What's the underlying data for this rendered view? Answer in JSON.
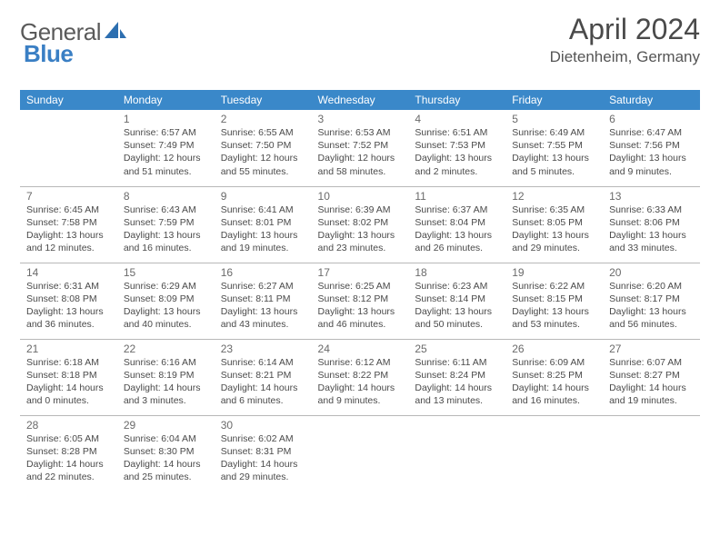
{
  "logo": {
    "text1": "General",
    "text2": "Blue"
  },
  "title": "April 2024",
  "location": "Dietenheim, Germany",
  "colors": {
    "header_bg": "#3a88c9",
    "header_text": "#ffffff",
    "logo_gray": "#5a5a5a",
    "logo_blue": "#3a7fc4",
    "text": "#4a4a4a",
    "border": "#b8b8b8"
  },
  "weekdays": [
    "Sunday",
    "Monday",
    "Tuesday",
    "Wednesday",
    "Thursday",
    "Friday",
    "Saturday"
  ],
  "weeks": [
    [
      {
        "num": "",
        "sunrise": "",
        "sunset": "",
        "daylight": ""
      },
      {
        "num": "1",
        "sunrise": "Sunrise: 6:57 AM",
        "sunset": "Sunset: 7:49 PM",
        "daylight": "Daylight: 12 hours and 51 minutes."
      },
      {
        "num": "2",
        "sunrise": "Sunrise: 6:55 AM",
        "sunset": "Sunset: 7:50 PM",
        "daylight": "Daylight: 12 hours and 55 minutes."
      },
      {
        "num": "3",
        "sunrise": "Sunrise: 6:53 AM",
        "sunset": "Sunset: 7:52 PM",
        "daylight": "Daylight: 12 hours and 58 minutes."
      },
      {
        "num": "4",
        "sunrise": "Sunrise: 6:51 AM",
        "sunset": "Sunset: 7:53 PM",
        "daylight": "Daylight: 13 hours and 2 minutes."
      },
      {
        "num": "5",
        "sunrise": "Sunrise: 6:49 AM",
        "sunset": "Sunset: 7:55 PM",
        "daylight": "Daylight: 13 hours and 5 minutes."
      },
      {
        "num": "6",
        "sunrise": "Sunrise: 6:47 AM",
        "sunset": "Sunset: 7:56 PM",
        "daylight": "Daylight: 13 hours and 9 minutes."
      }
    ],
    [
      {
        "num": "7",
        "sunrise": "Sunrise: 6:45 AM",
        "sunset": "Sunset: 7:58 PM",
        "daylight": "Daylight: 13 hours and 12 minutes."
      },
      {
        "num": "8",
        "sunrise": "Sunrise: 6:43 AM",
        "sunset": "Sunset: 7:59 PM",
        "daylight": "Daylight: 13 hours and 16 minutes."
      },
      {
        "num": "9",
        "sunrise": "Sunrise: 6:41 AM",
        "sunset": "Sunset: 8:01 PM",
        "daylight": "Daylight: 13 hours and 19 minutes."
      },
      {
        "num": "10",
        "sunrise": "Sunrise: 6:39 AM",
        "sunset": "Sunset: 8:02 PM",
        "daylight": "Daylight: 13 hours and 23 minutes."
      },
      {
        "num": "11",
        "sunrise": "Sunrise: 6:37 AM",
        "sunset": "Sunset: 8:04 PM",
        "daylight": "Daylight: 13 hours and 26 minutes."
      },
      {
        "num": "12",
        "sunrise": "Sunrise: 6:35 AM",
        "sunset": "Sunset: 8:05 PM",
        "daylight": "Daylight: 13 hours and 29 minutes."
      },
      {
        "num": "13",
        "sunrise": "Sunrise: 6:33 AM",
        "sunset": "Sunset: 8:06 PM",
        "daylight": "Daylight: 13 hours and 33 minutes."
      }
    ],
    [
      {
        "num": "14",
        "sunrise": "Sunrise: 6:31 AM",
        "sunset": "Sunset: 8:08 PM",
        "daylight": "Daylight: 13 hours and 36 minutes."
      },
      {
        "num": "15",
        "sunrise": "Sunrise: 6:29 AM",
        "sunset": "Sunset: 8:09 PM",
        "daylight": "Daylight: 13 hours and 40 minutes."
      },
      {
        "num": "16",
        "sunrise": "Sunrise: 6:27 AM",
        "sunset": "Sunset: 8:11 PM",
        "daylight": "Daylight: 13 hours and 43 minutes."
      },
      {
        "num": "17",
        "sunrise": "Sunrise: 6:25 AM",
        "sunset": "Sunset: 8:12 PM",
        "daylight": "Daylight: 13 hours and 46 minutes."
      },
      {
        "num": "18",
        "sunrise": "Sunrise: 6:23 AM",
        "sunset": "Sunset: 8:14 PM",
        "daylight": "Daylight: 13 hours and 50 minutes."
      },
      {
        "num": "19",
        "sunrise": "Sunrise: 6:22 AM",
        "sunset": "Sunset: 8:15 PM",
        "daylight": "Daylight: 13 hours and 53 minutes."
      },
      {
        "num": "20",
        "sunrise": "Sunrise: 6:20 AM",
        "sunset": "Sunset: 8:17 PM",
        "daylight": "Daylight: 13 hours and 56 minutes."
      }
    ],
    [
      {
        "num": "21",
        "sunrise": "Sunrise: 6:18 AM",
        "sunset": "Sunset: 8:18 PM",
        "daylight": "Daylight: 14 hours and 0 minutes."
      },
      {
        "num": "22",
        "sunrise": "Sunrise: 6:16 AM",
        "sunset": "Sunset: 8:19 PM",
        "daylight": "Daylight: 14 hours and 3 minutes."
      },
      {
        "num": "23",
        "sunrise": "Sunrise: 6:14 AM",
        "sunset": "Sunset: 8:21 PM",
        "daylight": "Daylight: 14 hours and 6 minutes."
      },
      {
        "num": "24",
        "sunrise": "Sunrise: 6:12 AM",
        "sunset": "Sunset: 8:22 PM",
        "daylight": "Daylight: 14 hours and 9 minutes."
      },
      {
        "num": "25",
        "sunrise": "Sunrise: 6:11 AM",
        "sunset": "Sunset: 8:24 PM",
        "daylight": "Daylight: 14 hours and 13 minutes."
      },
      {
        "num": "26",
        "sunrise": "Sunrise: 6:09 AM",
        "sunset": "Sunset: 8:25 PM",
        "daylight": "Daylight: 14 hours and 16 minutes."
      },
      {
        "num": "27",
        "sunrise": "Sunrise: 6:07 AM",
        "sunset": "Sunset: 8:27 PM",
        "daylight": "Daylight: 14 hours and 19 minutes."
      }
    ],
    [
      {
        "num": "28",
        "sunrise": "Sunrise: 6:05 AM",
        "sunset": "Sunset: 8:28 PM",
        "daylight": "Daylight: 14 hours and 22 minutes."
      },
      {
        "num": "29",
        "sunrise": "Sunrise: 6:04 AM",
        "sunset": "Sunset: 8:30 PM",
        "daylight": "Daylight: 14 hours and 25 minutes."
      },
      {
        "num": "30",
        "sunrise": "Sunrise: 6:02 AM",
        "sunset": "Sunset: 8:31 PM",
        "daylight": "Daylight: 14 hours and 29 minutes."
      },
      {
        "num": "",
        "sunrise": "",
        "sunset": "",
        "daylight": ""
      },
      {
        "num": "",
        "sunrise": "",
        "sunset": "",
        "daylight": ""
      },
      {
        "num": "",
        "sunrise": "",
        "sunset": "",
        "daylight": ""
      },
      {
        "num": "",
        "sunrise": "",
        "sunset": "",
        "daylight": ""
      }
    ]
  ]
}
